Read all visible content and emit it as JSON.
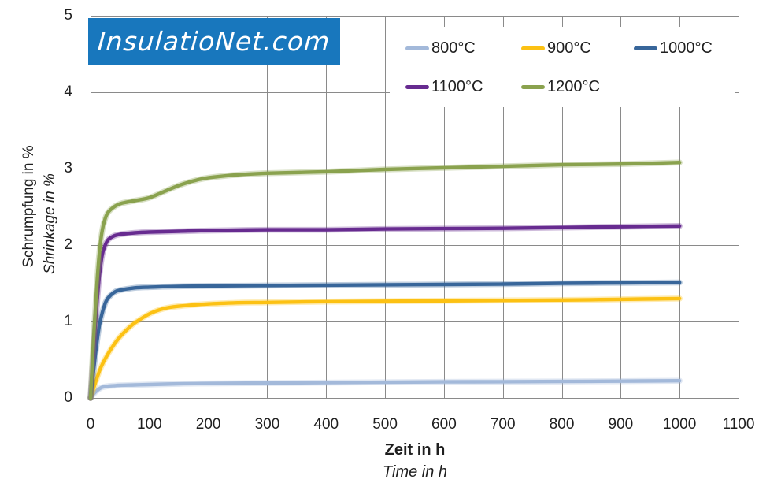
{
  "logo": {
    "text": "InsulatioNet.com",
    "bg_color": "#1877bd",
    "text_color": "#ffffff"
  },
  "colors": {
    "background": "#ffffff",
    "grid": "#8a8a8a",
    "text": "#1f1f1f"
  },
  "chart_data": {
    "type": "line",
    "title": "",
    "xlabel": "Zeit in h",
    "xlabel_italic": "Time in h",
    "ylabel": "Schrumpfung in %",
    "ylabel_italic": "Shrinkage in %",
    "xlim": [
      0,
      1100
    ],
    "ylim": [
      0,
      5
    ],
    "x_ticks": [
      0,
      100,
      200,
      300,
      400,
      500,
      600,
      700,
      800,
      900,
      1000,
      1100
    ],
    "y_ticks": [
      0,
      1,
      2,
      3,
      4,
      5
    ],
    "grid": true,
    "legend_position": "top-right",
    "series": [
      {
        "name": "800°C",
        "color": "#a3b9da",
        "points": [
          [
            0,
            0
          ],
          [
            5,
            0.05
          ],
          [
            10,
            0.09
          ],
          [
            15,
            0.12
          ],
          [
            20,
            0.14
          ],
          [
            30,
            0.155
          ],
          [
            40,
            0.16
          ],
          [
            50,
            0.165
          ],
          [
            75,
            0.17
          ],
          [
            100,
            0.175
          ],
          [
            150,
            0.185
          ],
          [
            200,
            0.19
          ],
          [
            300,
            0.195
          ],
          [
            400,
            0.2
          ],
          [
            500,
            0.205
          ],
          [
            600,
            0.21
          ],
          [
            700,
            0.212
          ],
          [
            800,
            0.215
          ],
          [
            900,
            0.22
          ],
          [
            1000,
            0.225
          ]
        ]
      },
      {
        "name": "900°C",
        "color": "#fcc113",
        "points": [
          [
            0,
            0
          ],
          [
            5,
            0.12
          ],
          [
            10,
            0.24
          ],
          [
            15,
            0.35
          ],
          [
            20,
            0.44
          ],
          [
            30,
            0.58
          ],
          [
            40,
            0.7
          ],
          [
            50,
            0.8
          ],
          [
            60,
            0.88
          ],
          [
            75,
            0.98
          ],
          [
            100,
            1.1
          ],
          [
            125,
            1.17
          ],
          [
            150,
            1.2
          ],
          [
            200,
            1.23
          ],
          [
            250,
            1.245
          ],
          [
            300,
            1.25
          ],
          [
            400,
            1.26
          ],
          [
            500,
            1.265
          ],
          [
            600,
            1.27
          ],
          [
            700,
            1.275
          ],
          [
            800,
            1.28
          ],
          [
            900,
            1.29
          ],
          [
            1000,
            1.3
          ]
        ]
      },
      {
        "name": "1000°C",
        "color": "#38669a",
        "points": [
          [
            0,
            0
          ],
          [
            5,
            0.35
          ],
          [
            10,
            0.68
          ],
          [
            15,
            0.95
          ],
          [
            20,
            1.12
          ],
          [
            25,
            1.24
          ],
          [
            30,
            1.31
          ],
          [
            40,
            1.38
          ],
          [
            50,
            1.41
          ],
          [
            75,
            1.44
          ],
          [
            100,
            1.45
          ],
          [
            150,
            1.46
          ],
          [
            200,
            1.465
          ],
          [
            300,
            1.47
          ],
          [
            400,
            1.475
          ],
          [
            500,
            1.48
          ],
          [
            600,
            1.485
          ],
          [
            700,
            1.49
          ],
          [
            800,
            1.5
          ],
          [
            900,
            1.505
          ],
          [
            1000,
            1.51
          ]
        ]
      },
      {
        "name": "1100°C",
        "color": "#672b90",
        "points": [
          [
            0,
            0
          ],
          [
            5,
            0.6
          ],
          [
            10,
            1.15
          ],
          [
            15,
            1.6
          ],
          [
            20,
            1.88
          ],
          [
            25,
            2.0
          ],
          [
            30,
            2.07
          ],
          [
            40,
            2.12
          ],
          [
            50,
            2.14
          ],
          [
            75,
            2.16
          ],
          [
            100,
            2.17
          ],
          [
            150,
            2.18
          ],
          [
            200,
            2.19
          ],
          [
            300,
            2.2
          ],
          [
            400,
            2.2
          ],
          [
            500,
            2.21
          ],
          [
            600,
            2.215
          ],
          [
            700,
            2.22
          ],
          [
            800,
            2.23
          ],
          [
            900,
            2.24
          ],
          [
            1000,
            2.25
          ]
        ]
      },
      {
        "name": "1200°C",
        "color": "#8aa24e",
        "points": [
          [
            0,
            0
          ],
          [
            5,
            0.75
          ],
          [
            10,
            1.4
          ],
          [
            15,
            1.9
          ],
          [
            20,
            2.2
          ],
          [
            25,
            2.35
          ],
          [
            30,
            2.43
          ],
          [
            40,
            2.5
          ],
          [
            50,
            2.54
          ],
          [
            60,
            2.56
          ],
          [
            75,
            2.58
          ],
          [
            100,
            2.62
          ],
          [
            125,
            2.7
          ],
          [
            150,
            2.78
          ],
          [
            175,
            2.84
          ],
          [
            200,
            2.88
          ],
          [
            250,
            2.92
          ],
          [
            300,
            2.94
          ],
          [
            400,
            2.96
          ],
          [
            500,
            2.99
          ],
          [
            600,
            3.01
          ],
          [
            700,
            3.03
          ],
          [
            800,
            3.05
          ],
          [
            900,
            3.06
          ],
          [
            1000,
            3.08
          ]
        ]
      }
    ]
  }
}
